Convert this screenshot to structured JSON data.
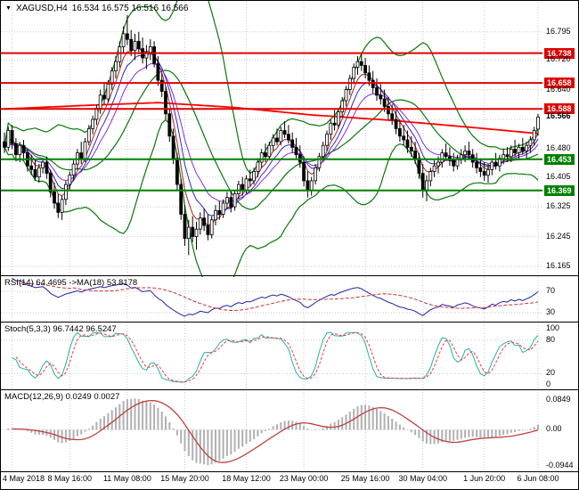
{
  "header": {
    "dropdown_icon": "▼",
    "symbol": "XAGUSD,H4",
    "ohlc": "16.534 16.575 16.516 16.566"
  },
  "colors": {
    "background": "#FFFFFF",
    "frame": "#000000",
    "grid": "#C9C9C9",
    "candle_outline": "#000000",
    "bull_fill": "#FFFFFF",
    "bear_fill": "#000000",
    "bollinger": "#077807",
    "ma_trend": "#FF0000",
    "ma_fan": [
      "#B22222",
      "#2929C8",
      "#8A2BE2"
    ],
    "resistance": "#E00000",
    "support": "#008000",
    "rsi_line": "#2222AA",
    "rsi_ma": "#CC3333",
    "stoch_k": "#20B2AA",
    "stoch_d": "#FF3333",
    "macd_hist": "#B0B0B0",
    "macd_signal": "#C04040",
    "text": "#000000"
  },
  "chart_data": {
    "type": "candlestick",
    "symbol": "XAGUSD",
    "timeframe": "H4",
    "current_open": 16.534,
    "current_high": 16.575,
    "current_low": 16.516,
    "current_close": 16.566,
    "grid_levels": [
      16.795,
      16.72,
      16.64,
      16.56,
      16.48,
      16.405,
      16.325,
      16.245,
      16.165
    ],
    "price_labels": [
      {
        "text": "16.795",
        "value": 16.795,
        "style": "plain"
      },
      {
        "text": "16.738",
        "value": 16.738,
        "style": "resistance"
      },
      {
        "text": "16.720",
        "value": 16.72,
        "style": "plain"
      },
      {
        "text": "16.658",
        "value": 16.658,
        "style": "resistance"
      },
      {
        "text": "16.640",
        "value": 16.64,
        "style": "plain"
      },
      {
        "text": "16.588",
        "value": 16.588,
        "style": "resistance"
      },
      {
        "text": "16.566",
        "value": 16.566,
        "style": "current"
      },
      {
        "text": "16.480",
        "value": 16.48,
        "style": "plain"
      },
      {
        "text": "16.453",
        "value": 16.453,
        "style": "support"
      },
      {
        "text": "16.405",
        "value": 16.405,
        "style": "plain"
      },
      {
        "text": "16.369",
        "value": 16.369,
        "style": "support"
      },
      {
        "text": "16.325",
        "value": 16.325,
        "style": "plain"
      },
      {
        "text": "16.245",
        "value": 16.245,
        "style": "plain"
      },
      {
        "text": "16.165",
        "value": 16.165,
        "style": "plain"
      }
    ],
    "time_labels": [
      {
        "text": "4 May 2018",
        "index": 2
      },
      {
        "text": "8 May 16:00",
        "index": 17
      },
      {
        "text": "11 May 08:00",
        "index": 32
      },
      {
        "text": "15 May 20:00",
        "index": 47
      },
      {
        "text": "18 May 12:00",
        "index": 63
      },
      {
        "text": "23 May 00:00",
        "index": 78
      },
      {
        "text": "25 May 16:00",
        "index": 94
      },
      {
        "text": "30 May 04:00",
        "index": 109
      },
      {
        "text": "1 Jun 20:00",
        "index": 125
      },
      {
        "text": "6 Jun 08:00",
        "index": 139
      }
    ],
    "bollinger": {
      "period": 20,
      "deviation": 1.9
    },
    "ma_fan_periods": [
      5,
      8,
      13
    ],
    "ma_trend_anchors": [
      [
        0,
        16.588
      ],
      [
        20,
        16.597
      ],
      [
        40,
        16.605
      ],
      [
        60,
        16.592
      ],
      [
        80,
        16.572
      ],
      [
        100,
        16.558
      ],
      [
        120,
        16.54
      ],
      [
        139,
        16.522
      ]
    ],
    "candles": [
      [
        16.5,
        16.525,
        16.47,
        16.485
      ],
      [
        16.485,
        16.54,
        16.475,
        16.53
      ],
      [
        16.53,
        16.545,
        16.48,
        16.495
      ],
      [
        16.495,
        16.51,
        16.45,
        16.465
      ],
      [
        16.465,
        16.5,
        16.445,
        16.49
      ],
      [
        16.49,
        16.505,
        16.455,
        16.47
      ],
      [
        16.47,
        16.48,
        16.42,
        16.435
      ],
      [
        16.435,
        16.465,
        16.41,
        16.425
      ],
      [
        16.425,
        16.45,
        16.395,
        16.405
      ],
      [
        16.405,
        16.44,
        16.39,
        16.43
      ],
      [
        16.43,
        16.455,
        16.415,
        16.445
      ],
      [
        16.445,
        16.46,
        16.4,
        16.415
      ],
      [
        16.415,
        16.425,
        16.35,
        16.365
      ],
      [
        16.365,
        16.39,
        16.32,
        16.335
      ],
      [
        16.335,
        16.36,
        16.295,
        16.31
      ],
      [
        16.31,
        16.355,
        16.29,
        16.345
      ],
      [
        16.345,
        16.395,
        16.33,
        16.385
      ],
      [
        16.385,
        16.42,
        16.37,
        16.41
      ],
      [
        16.41,
        16.45,
        16.395,
        16.44
      ],
      [
        16.44,
        16.48,
        16.425,
        16.47
      ],
      [
        16.47,
        16.5,
        16.44,
        16.455
      ],
      [
        16.455,
        16.51,
        16.445,
        16.5
      ],
      [
        16.5,
        16.545,
        16.49,
        16.535
      ],
      [
        16.535,
        16.57,
        16.52,
        16.56
      ],
      [
        16.56,
        16.6,
        16.545,
        16.59
      ],
      [
        16.59,
        16.64,
        16.575,
        16.625
      ],
      [
        16.625,
        16.66,
        16.6,
        16.615
      ],
      [
        16.615,
        16.665,
        16.605,
        16.655
      ],
      [
        16.655,
        16.7,
        16.64,
        16.69
      ],
      [
        16.69,
        16.73,
        16.67,
        16.715
      ],
      [
        16.715,
        16.77,
        16.7,
        16.755
      ],
      [
        16.755,
        16.81,
        16.74,
        16.79
      ],
      [
        16.79,
        16.84,
        16.76,
        16.775
      ],
      [
        16.775,
        16.8,
        16.73,
        16.745
      ],
      [
        16.745,
        16.79,
        16.72,
        16.77
      ],
      [
        16.77,
        16.795,
        16.735,
        16.75
      ],
      [
        16.75,
        16.78,
        16.71,
        16.725
      ],
      [
        16.725,
        16.76,
        16.695,
        16.74
      ],
      [
        16.74,
        16.775,
        16.72,
        16.755
      ],
      [
        16.755,
        16.77,
        16.7,
        16.71
      ],
      [
        16.71,
        16.73,
        16.65,
        16.665
      ],
      [
        16.665,
        16.685,
        16.62,
        16.635
      ],
      [
        16.635,
        16.65,
        16.56,
        16.575
      ],
      [
        16.575,
        16.59,
        16.5,
        16.515
      ],
      [
        16.515,
        16.535,
        16.44,
        16.455
      ],
      [
        16.455,
        16.47,
        16.37,
        16.385
      ],
      [
        16.385,
        16.4,
        16.29,
        16.305
      ],
      [
        16.305,
        16.33,
        16.22,
        16.24
      ],
      [
        16.24,
        16.29,
        16.195,
        16.27
      ],
      [
        16.27,
        16.3,
        16.23,
        16.245
      ],
      [
        16.245,
        16.285,
        16.21,
        16.265
      ],
      [
        16.265,
        16.31,
        16.25,
        16.295
      ],
      [
        16.295,
        16.32,
        16.26,
        16.275
      ],
      [
        16.275,
        16.305,
        16.235,
        16.25
      ],
      [
        16.25,
        16.3,
        16.24,
        16.29
      ],
      [
        16.29,
        16.33,
        16.275,
        16.315
      ],
      [
        16.315,
        16.34,
        16.29,
        16.305
      ],
      [
        16.305,
        16.345,
        16.295,
        16.335
      ],
      [
        16.335,
        16.365,
        16.32,
        16.35
      ],
      [
        16.35,
        16.37,
        16.31,
        16.325
      ],
      [
        16.325,
        16.37,
        16.315,
        16.36
      ],
      [
        16.36,
        16.395,
        16.345,
        16.385
      ],
      [
        16.385,
        16.405,
        16.355,
        16.37
      ],
      [
        16.37,
        16.41,
        16.36,
        16.4
      ],
      [
        16.4,
        16.425,
        16.38,
        16.395
      ],
      [
        16.395,
        16.43,
        16.385,
        16.42
      ],
      [
        16.42,
        16.455,
        16.405,
        16.445
      ],
      [
        16.445,
        16.48,
        16.43,
        16.47
      ],
      [
        16.47,
        16.495,
        16.445,
        16.46
      ],
      [
        16.46,
        16.5,
        16.45,
        16.49
      ],
      [
        16.49,
        16.52,
        16.475,
        16.51
      ],
      [
        16.51,
        16.535,
        16.49,
        16.5
      ],
      [
        16.5,
        16.54,
        16.49,
        16.53
      ],
      [
        16.53,
        16.555,
        16.51,
        16.52
      ],
      [
        16.52,
        16.545,
        16.495,
        16.505
      ],
      [
        16.505,
        16.525,
        16.47,
        16.485
      ],
      [
        16.485,
        16.51,
        16.455,
        16.465
      ],
      [
        16.465,
        16.49,
        16.43,
        16.445
      ],
      [
        16.445,
        16.46,
        16.38,
        16.395
      ],
      [
        16.395,
        16.42,
        16.35,
        16.37
      ],
      [
        16.37,
        16.405,
        16.355,
        16.395
      ],
      [
        16.395,
        16.44,
        16.385,
        16.43
      ],
      [
        16.43,
        16.47,
        16.42,
        16.46
      ],
      [
        16.46,
        16.5,
        16.45,
        16.49
      ],
      [
        16.49,
        16.53,
        16.475,
        16.52
      ],
      [
        16.52,
        16.56,
        16.505,
        16.55
      ],
      [
        16.55,
        16.585,
        16.53,
        16.545
      ],
      [
        16.545,
        16.59,
        16.535,
        16.58
      ],
      [
        16.58,
        16.62,
        16.565,
        16.61
      ],
      [
        16.61,
        16.65,
        16.595,
        16.64
      ],
      [
        16.64,
        16.68,
        16.625,
        16.67
      ],
      [
        16.67,
        16.71,
        16.655,
        16.7
      ],
      [
        16.7,
        16.73,
        16.68,
        16.715
      ],
      [
        16.715,
        16.735,
        16.69,
        16.705
      ],
      [
        16.705,
        16.725,
        16.67,
        16.685
      ],
      [
        16.685,
        16.705,
        16.65,
        16.665
      ],
      [
        16.665,
        16.69,
        16.63,
        16.645
      ],
      [
        16.645,
        16.67,
        16.61,
        16.625
      ],
      [
        16.625,
        16.655,
        16.6,
        16.615
      ],
      [
        16.615,
        16.64,
        16.58,
        16.595
      ],
      [
        16.595,
        16.62,
        16.56,
        16.575
      ],
      [
        16.575,
        16.6,
        16.545,
        16.56
      ],
      [
        16.56,
        16.585,
        16.52,
        16.535
      ],
      [
        16.535,
        16.56,
        16.5,
        16.515
      ],
      [
        16.515,
        16.545,
        16.49,
        16.505
      ],
      [
        16.505,
        16.53,
        16.47,
        16.485
      ],
      [
        16.485,
        16.515,
        16.46,
        16.475
      ],
      [
        16.475,
        16.5,
        16.44,
        16.455
      ],
      [
        16.455,
        16.47,
        16.4,
        16.415
      ],
      [
        16.415,
        16.44,
        16.35,
        16.37
      ],
      [
        16.37,
        16.41,
        16.34,
        16.395
      ],
      [
        16.395,
        16.43,
        16.38,
        16.42
      ],
      [
        16.42,
        16.45,
        16.405,
        16.435
      ],
      [
        16.435,
        16.46,
        16.415,
        16.445
      ],
      [
        16.445,
        16.48,
        16.43,
        16.47
      ],
      [
        16.47,
        16.495,
        16.45,
        16.46
      ],
      [
        16.46,
        16.485,
        16.435,
        16.45
      ],
      [
        16.45,
        16.47,
        16.42,
        16.435
      ],
      [
        16.435,
        16.465,
        16.425,
        16.455
      ],
      [
        16.455,
        16.48,
        16.44,
        16.465
      ],
      [
        16.465,
        16.49,
        16.445,
        16.475
      ],
      [
        16.475,
        16.5,
        16.455,
        16.465
      ],
      [
        16.465,
        16.48,
        16.43,
        16.445
      ],
      [
        16.445,
        16.47,
        16.415,
        16.43
      ],
      [
        16.43,
        16.455,
        16.405,
        16.42
      ],
      [
        16.42,
        16.445,
        16.395,
        16.41
      ],
      [
        16.41,
        16.44,
        16.39,
        16.425
      ],
      [
        16.425,
        16.455,
        16.41,
        16.445
      ],
      [
        16.445,
        16.47,
        16.425,
        16.435
      ],
      [
        16.435,
        16.465,
        16.42,
        16.455
      ],
      [
        16.455,
        16.48,
        16.44,
        16.465
      ],
      [
        16.465,
        16.485,
        16.445,
        16.46
      ],
      [
        16.46,
        16.49,
        16.445,
        16.48
      ],
      [
        16.48,
        16.505,
        16.46,
        16.47
      ],
      [
        16.47,
        16.495,
        16.45,
        16.485
      ],
      [
        16.485,
        16.51,
        16.465,
        16.475
      ],
      [
        16.475,
        16.5,
        16.455,
        16.49
      ],
      [
        16.49,
        16.515,
        16.47,
        16.505
      ],
      [
        16.505,
        16.54,
        16.49,
        16.53
      ],
      [
        16.534,
        16.575,
        16.516,
        16.566
      ]
    ],
    "panes": {
      "rsi": {
        "label": "RSI(14) 64.4695 ->MA(18) 53.8178",
        "period": 14,
        "ma_period": 18,
        "value": "64.4695",
        "ma_value": "53.8178",
        "levels": [
          70,
          30
        ],
        "axis_labels": [
          "70",
          "30"
        ]
      },
      "stoch": {
        "label": "Stoch(5,3,3) 96.7442 96.5247",
        "k_period": 5,
        "d_period": 3,
        "slowing": 3,
        "value": "96.7442",
        "signal_value": "96.5247",
        "levels": [
          80,
          20
        ],
        "axis_values": [
          100,
          80,
          20,
          0
        ],
        "axis_labels": [
          "100",
          "80",
          "20",
          "0"
        ]
      },
      "macd": {
        "label": "MACD(12,26,9) 0.0249 0.0027",
        "fast": 12,
        "slow": 26,
        "signal": 9,
        "value": "0.0249",
        "signal_value": "0.0027",
        "axis_labels": {
          "top": "0.0849",
          "zero": "0.00",
          "bottom": "-0.0944"
        }
      }
    }
  }
}
